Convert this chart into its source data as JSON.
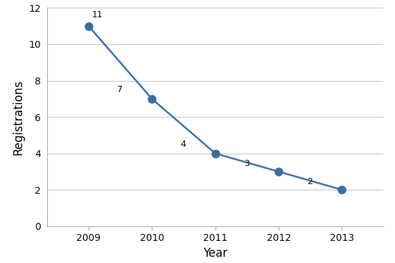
{
  "years": [
    2009,
    2010,
    2011,
    2012,
    2013
  ],
  "values": [
    11,
    7,
    4,
    3,
    2
  ],
  "line_color": "#3a6ea5",
  "marker_color": "#3a6ea5",
  "marker_size": 8,
  "line_width": 1.8,
  "xlabel": "Year",
  "ylabel": "Registrations",
  "ylim": [
    0,
    12
  ],
  "yticks": [
    0,
    2,
    4,
    6,
    8,
    10,
    12
  ],
  "background_color": "#ffffff",
  "grid_color": "#c8c8c8",
  "label_fontsize": 12,
  "tick_fontsize": 10,
  "annotation_fontsize": 9,
  "border_color": "#aaaaaa"
}
